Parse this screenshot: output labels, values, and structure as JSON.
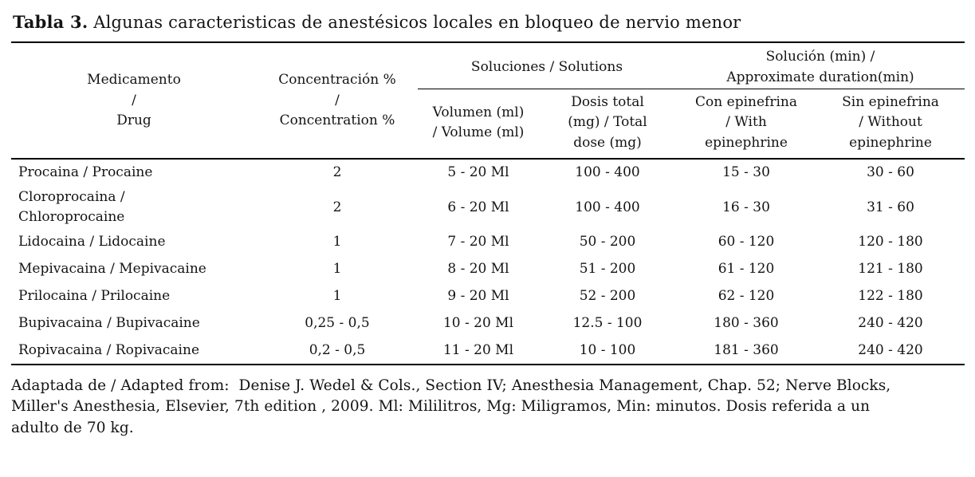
{
  "title": {
    "label": "Tabla 3.",
    "text": " Algunas caracteristicas de anestésicos locales en bloqueo de nervio menor"
  },
  "table": {
    "headers": {
      "drug": "Medicamento\n/\nDrug",
      "concentration": "Concentración %\n/\nConcentration %",
      "solutions_group": "Soluciones / Solutions",
      "duration_group": "Solución (min) /\nApproximate duration(min)",
      "volume": "Volumen (ml)\n/ Volume (ml)",
      "dose": "Dosis total\n(mg) / Total\ndose (mg)",
      "with_epinephrine": "Con epinefrina\n/ With\nepinephrine",
      "without_epinephrine": "Sin epinefrina\n/ Without\nepinephrine"
    },
    "rows": [
      {
        "drug": "Procaina / Procaine",
        "concentration": "2",
        "volume": "5 - 20 Ml",
        "dose": "100 - 400",
        "with_epinephrine": "15 - 30",
        "without_epinephrine": "30 - 60"
      },
      {
        "drug": "Cloroprocaina /\nChloroprocaine",
        "concentration": "2",
        "volume": "6 - 20 Ml",
        "dose": "100 - 400",
        "with_epinephrine": "16 - 30",
        "without_epinephrine": "31 - 60"
      },
      {
        "drug": "Lidocaina / Lidocaine",
        "concentration": "1",
        "volume": "7 - 20 Ml",
        "dose": "50 - 200",
        "with_epinephrine": "60 - 120",
        "without_epinephrine": "120 - 180"
      },
      {
        "drug": "Mepivacaina / Mepivacaine",
        "concentration": "1",
        "volume": "8 - 20 Ml",
        "dose": "51 - 200",
        "with_epinephrine": "61 - 120",
        "without_epinephrine": "121 - 180"
      },
      {
        "drug": "Prilocaina / Prilocaine",
        "concentration": "1",
        "volume": "9 - 20 Ml",
        "dose": "52 - 200",
        "with_epinephrine": "62 - 120",
        "without_epinephrine": "122 - 180"
      },
      {
        "drug": "Bupivacaina / Bupivacaine",
        "concentration": "0,25 - 0,5",
        "volume": "10 - 20 Ml",
        "dose": "12.5 - 100",
        "with_epinephrine": "180 - 360",
        "without_epinephrine": "240 - 420"
      },
      {
        "drug": "Ropivacaina / Ropivacaine",
        "concentration": "0,2 - 0,5",
        "volume": "11 - 20 Ml",
        "dose": "10 - 100",
        "with_epinephrine": "181 - 360",
        "without_epinephrine": "240 - 420"
      }
    ]
  },
  "footnote": "Adaptada de / Adapted from:  Denise J. Wedel & Cols., Section IV; Anesthesia Management, Chap. 52; Nerve Blocks,\nMiller's Anesthesia, Elsevier, 7th edition , 2009. Ml: Mililitros, Mg: Miligramos, Min: minutos. Dosis referida a un\nadulto de 70 kg.",
  "colors": {
    "background": "#ffffff",
    "text": "#141414",
    "rule": "#000000"
  }
}
